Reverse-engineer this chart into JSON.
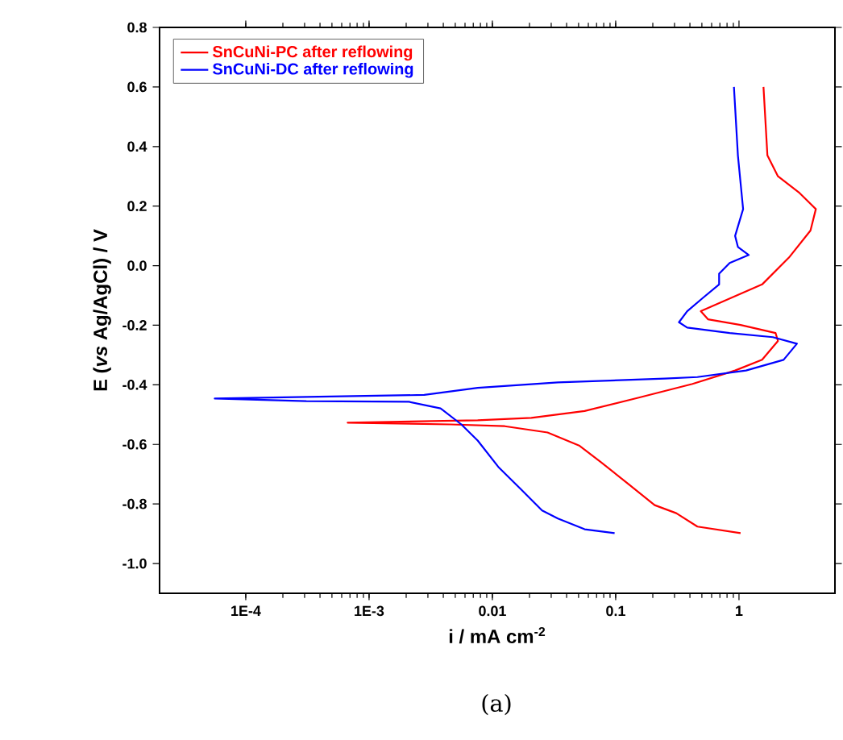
{
  "chart_data": {
    "type": "line",
    "xlabel": "i / mA cm$^{-2}$",
    "ylabel": "E (*vs* Ag/AgCl) / V",
    "annotations": [
      "(a)"
    ],
    "log": "x",
    "xlim": [
      2e-05,
      6
    ],
    "xticks": [
      {
        "value": 0.0001,
        "label": "1E-4"
      },
      {
        "value": 0.001,
        "label": "1E-3"
      },
      0.01,
      0.1,
      1
    ],
    "ylim": [
      -1.1,
      0.8
    ],
    "yticks": [
      {
        "value": -1.0,
        "label": "-1.0"
      },
      -0.8,
      -0.6,
      -0.4,
      -0.2,
      {
        "value": 0,
        "label": "0.0"
      },
      0.2,
      0.4,
      0.6,
      0.8
    ],
    "grid": false,
    "legend": "top left",
    "marker": "none",
    "line_style": "solid",
    "series": [
      {
        "name": "SnCuNi-PC after reflowing",
        "color": "#ff0000",
        "x": [
          1.58,
          1.7,
          2.07,
          3.1,
          4.2,
          3.8,
          2.54,
          1.54,
          0.76,
          0.49,
          0.56,
          1.03,
          1.98,
          2.07,
          1.54,
          0.93,
          0.42,
          0.154,
          0.056,
          0.0207,
          0.0076,
          0.00067,
          0.0046,
          0.0126,
          0.028,
          0.051,
          0.076,
          0.126,
          0.207,
          0.31,
          0.46,
          1.03
        ],
        "values": [
          0.6,
          0.37,
          0.3,
          0.244,
          0.19,
          0.118,
          0.027,
          -0.063,
          -0.118,
          -0.153,
          -0.18,
          -0.199,
          -0.226,
          -0.253,
          -0.316,
          -0.352,
          -0.397,
          -0.443,
          -0.488,
          -0.511,
          -0.519,
          -0.527,
          -0.533,
          -0.539,
          -0.56,
          -0.605,
          -0.66,
          -0.732,
          -0.804,
          -0.831,
          -0.876,
          -0.898
        ]
      },
      {
        "name": "SnCuNi-DC after reflowing",
        "color": "#0000ff",
        "x": [
          0.91,
          0.98,
          1.08,
          0.93,
          0.98,
          1.2,
          0.84,
          0.69,
          0.69,
          0.51,
          0.38,
          0.326,
          0.38,
          0.84,
          1.88,
          2.95,
          2.3,
          1.14,
          0.46,
          0.25,
          0.034,
          0.0076,
          0.0028,
          5.6e-05,
          0.00031,
          0.0021,
          0.0038,
          0.0056,
          0.0076,
          0.0113,
          0.017,
          0.0253,
          0.034,
          0.056,
          0.098
        ],
        "values": [
          0.6,
          0.37,
          0.19,
          0.1,
          0.063,
          0.036,
          0.009,
          -0.027,
          -0.063,
          -0.108,
          -0.153,
          -0.19,
          -0.208,
          -0.226,
          -0.24,
          -0.262,
          -0.316,
          -0.352,
          -0.374,
          -0.379,
          -0.392,
          -0.41,
          -0.434,
          -0.446,
          -0.455,
          -0.457,
          -0.479,
          -0.533,
          -0.587,
          -0.678,
          -0.75,
          -0.822,
          -0.849,
          -0.885,
          -0.898
        ]
      }
    ]
  }
}
